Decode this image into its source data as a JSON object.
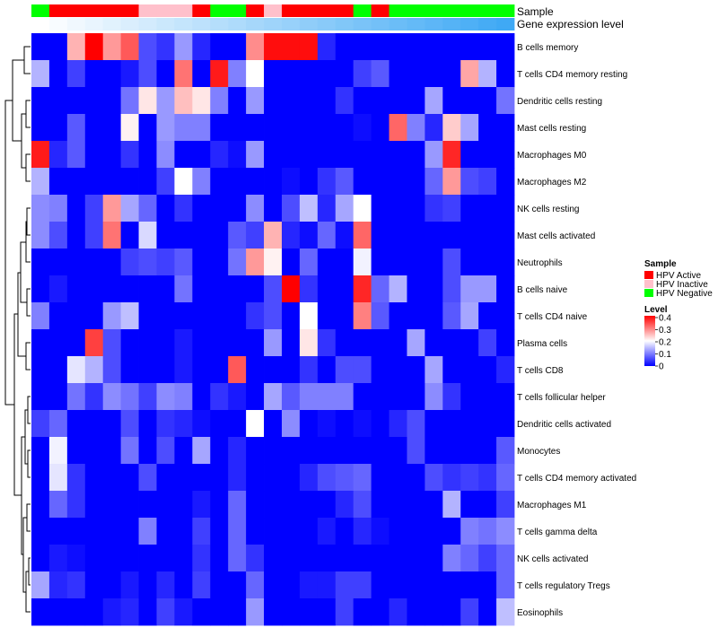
{
  "chart_data": {
    "type": "heatmap",
    "title": "",
    "annotation_labels": [
      "Sample",
      "Gene expression level"
    ],
    "sample_groups": [
      {
        "name": "HPV Active",
        "color": "#FF0000"
      },
      {
        "name": "HPV Inactive",
        "color": "#FFC0CB"
      },
      {
        "name": "HPV Negative",
        "color": "#00FF00"
      }
    ],
    "sample_annotation": [
      "HPV Negative",
      "HPV Active",
      "HPV Active",
      "HPV Active",
      "HPV Active",
      "HPV Active",
      "HPV Inactive",
      "HPV Inactive",
      "HPV Inactive",
      "HPV Active",
      "HPV Negative",
      "HPV Negative",
      "HPV Active",
      "HPV Inactive",
      "HPV Active",
      "HPV Active",
      "HPV Active",
      "HPV Active",
      "HPV Negative",
      "HPV Active",
      "HPV Negative",
      "HPV Negative",
      "HPV Negative",
      "HPV Negative",
      "HPV Negative",
      "HPV Negative",
      "HPV Negative"
    ],
    "expression_level_gradient": [
      "#FFFFFF",
      "#3FA9F5"
    ],
    "rows": [
      "B cells memory",
      "T cells CD4 memory resting",
      "Dendritic cells resting",
      "Mast cells resting",
      "Macrophages M0",
      "Macrophages M2",
      "NK cells resting",
      "Mast cells activated",
      "Neutrophils",
      "B cells naive",
      "T cells CD4 naive",
      "Plasma cells",
      "T cells CD8",
      "T cells follicular helper",
      "Dendritic cells activated",
      "Monocytes",
      "T cells CD4 memory activated",
      "Macrophages M1",
      "T cells gamma delta",
      "NK cells activated",
      "T cells regulatory  Tregs",
      "Eosinophils"
    ],
    "values": [
      [
        0,
        0,
        0.26,
        0.4,
        0.28,
        0.33,
        0.06,
        0.04,
        0.12,
        0.03,
        0,
        0,
        0.29,
        0.39,
        0.39,
        0.39,
        0.03,
        0,
        0,
        0,
        0,
        0,
        0,
        0,
        0,
        0,
        0
      ],
      [
        0.14,
        0,
        0.05,
        0,
        0,
        0.02,
        0.06,
        0,
        0.31,
        0,
        0.38,
        0.1,
        0.2,
        0,
        0,
        0,
        0,
        0,
        0.05,
        0.07,
        0,
        0,
        0,
        0,
        0.27,
        0.14,
        0
      ],
      [
        0,
        0,
        0,
        0,
        0,
        0.09,
        0.22,
        0.12,
        0.25,
        0.22,
        0.1,
        0,
        0.12,
        0,
        0,
        0,
        0,
        0.04,
        0,
        0,
        0,
        0,
        0.13,
        0,
        0,
        0,
        0.09
      ],
      [
        0,
        0,
        0.07,
        0,
        0,
        0.21,
        0,
        0.12,
        0.1,
        0.1,
        0,
        0,
        0,
        0,
        0,
        0,
        0,
        0,
        0.01,
        0,
        0.32,
        0.1,
        0.03,
        0.24,
        0.13,
        0,
        0
      ],
      [
        0.38,
        0.03,
        0.07,
        0,
        0,
        0.04,
        0,
        0.11,
        0,
        0,
        0.03,
        0.01,
        0.12,
        0,
        0,
        0,
        0,
        0,
        0,
        0,
        0,
        0,
        0.12,
        0.37,
        0,
        0,
        0
      ],
      [
        0.14,
        0,
        0,
        0,
        0,
        0,
        0,
        0.05,
        0.2,
        0.1,
        0,
        0,
        0,
        0,
        0.01,
        0,
        0.04,
        0.07,
        0,
        0,
        0,
        0,
        0.08,
        0.28,
        0.06,
        0.05,
        0
      ],
      [
        0.11,
        0.1,
        0,
        0.05,
        0.28,
        0.13,
        0.08,
        0,
        0.04,
        0,
        0,
        0,
        0.11,
        0,
        0.06,
        0.15,
        0.03,
        0.13,
        0.2,
        0,
        0,
        0,
        0.04,
        0.05,
        0,
        0,
        0
      ],
      [
        0.11,
        0.06,
        0,
        0.05,
        0.31,
        0,
        0.17,
        0,
        0,
        0,
        0,
        0.07,
        0.05,
        0.26,
        0.03,
        0.01,
        0.08,
        0.01,
        0.32,
        0,
        0,
        0,
        0,
        0,
        0,
        0,
        0
      ],
      [
        0,
        0,
        0,
        0,
        0,
        0.05,
        0.06,
        0.05,
        0.07,
        0,
        0,
        0.09,
        0.28,
        0.21,
        0,
        0.08,
        0,
        0,
        0.19,
        0,
        0,
        0,
        0,
        0.06,
        0,
        0,
        0
      ],
      [
        0,
        0.02,
        0,
        0,
        0,
        0,
        0,
        0,
        0.09,
        0,
        0,
        0,
        0,
        0.06,
        0.4,
        0.04,
        0,
        0,
        0.37,
        0.08,
        0.14,
        0,
        0,
        0.06,
        0.12,
        0.12,
        0
      ],
      [
        0.1,
        0,
        0,
        0,
        0.12,
        0.15,
        0,
        0,
        0,
        0,
        0,
        0,
        0.04,
        0.06,
        0,
        0.2,
        0,
        0,
        0.3,
        0.07,
        0,
        0,
        0,
        0.07,
        0.13,
        0,
        0
      ],
      [
        0,
        0,
        0,
        0.35,
        0.06,
        0,
        0,
        0,
        0.02,
        0,
        0,
        0,
        0,
        0.12,
        0,
        0.22,
        0.04,
        0,
        0,
        0,
        0,
        0.13,
        0,
        0,
        0,
        0.05,
        0
      ],
      [
        0,
        0,
        0.18,
        0.14,
        0.06,
        0,
        0,
        0,
        0.02,
        0,
        0,
        0.33,
        0,
        0,
        0,
        0.04,
        0,
        0.06,
        0.06,
        0,
        0,
        0,
        0.13,
        0,
        0,
        0,
        0.03
      ],
      [
        0,
        0,
        0.09,
        0.04,
        0.11,
        0.09,
        0.05,
        0.11,
        0.1,
        0,
        0.04,
        0.02,
        0,
        0.13,
        0.07,
        0.1,
        0.1,
        0.1,
        0,
        0,
        0,
        0,
        0.11,
        0.04,
        0,
        0,
        0
      ],
      [
        0.05,
        0.08,
        0,
        0,
        0,
        0.06,
        0,
        0.04,
        0.03,
        0.01,
        0,
        0,
        0.2,
        0,
        0.11,
        0,
        0.01,
        0,
        0.01,
        0,
        0.03,
        0.06,
        0,
        0,
        0,
        0,
        0
      ],
      [
        0,
        0.19,
        0,
        0,
        0,
        0.09,
        0,
        0.06,
        0,
        0.13,
        0,
        0.03,
        0,
        0,
        0,
        0,
        0,
        0,
        0,
        0,
        0,
        0.06,
        0,
        0,
        0,
        0,
        0.07
      ],
      [
        0,
        0.18,
        0.04,
        0,
        0,
        0,
        0.06,
        0,
        0,
        0,
        0,
        0.03,
        0,
        0,
        0,
        0.03,
        0.06,
        0.07,
        0.08,
        0,
        0,
        0,
        0.06,
        0.04,
        0.05,
        0.04,
        0.08
      ],
      [
        0,
        0.08,
        0.04,
        0,
        0,
        0,
        0,
        0,
        0,
        0.02,
        0,
        0.08,
        0,
        0,
        0,
        0,
        0,
        0.03,
        0.06,
        0,
        0,
        0,
        0,
        0.14,
        0,
        0,
        0.05
      ],
      [
        0,
        0,
        0,
        0,
        0,
        0,
        0.1,
        0,
        0,
        0.05,
        0,
        0.08,
        0,
        0,
        0,
        0,
        0.02,
        0,
        0.03,
        0.01,
        0,
        0,
        0,
        0,
        0.1,
        0.09,
        0.11
      ],
      [
        0,
        0.02,
        0.01,
        0,
        0,
        0,
        0,
        0,
        0,
        0.04,
        0,
        0.08,
        0.04,
        0,
        0,
        0,
        0,
        0,
        0,
        0,
        0,
        0,
        0,
        0.1,
        0.08,
        0.05,
        0.08
      ],
      [
        0.13,
        0.03,
        0.04,
        0,
        0,
        0.02,
        0,
        0.03,
        0,
        0.05,
        0,
        0,
        0.08,
        0,
        0,
        0.02,
        0.02,
        0.05,
        0.05,
        0,
        0,
        0,
        0,
        0,
        0,
        0,
        0.08
      ],
      [
        0,
        0,
        0,
        0,
        0.02,
        0.03,
        0,
        0.05,
        0.02,
        0,
        0,
        0,
        0.12,
        0,
        0,
        0,
        0,
        0.05,
        0,
        0,
        0.03,
        0,
        0,
        0,
        0.05,
        0,
        0.15
      ]
    ],
    "color_scale": {
      "min": 0,
      "max": 0.4,
      "colors": [
        "#0000FF",
        "#FFFFFF",
        "#FF0000"
      ]
    },
    "legend": {
      "sample_title": "Sample",
      "level_title": "Level",
      "level_ticks": [
        "0.4",
        "0.3",
        "0.2",
        "0.1",
        "0"
      ],
      "placement": "right"
    }
  }
}
